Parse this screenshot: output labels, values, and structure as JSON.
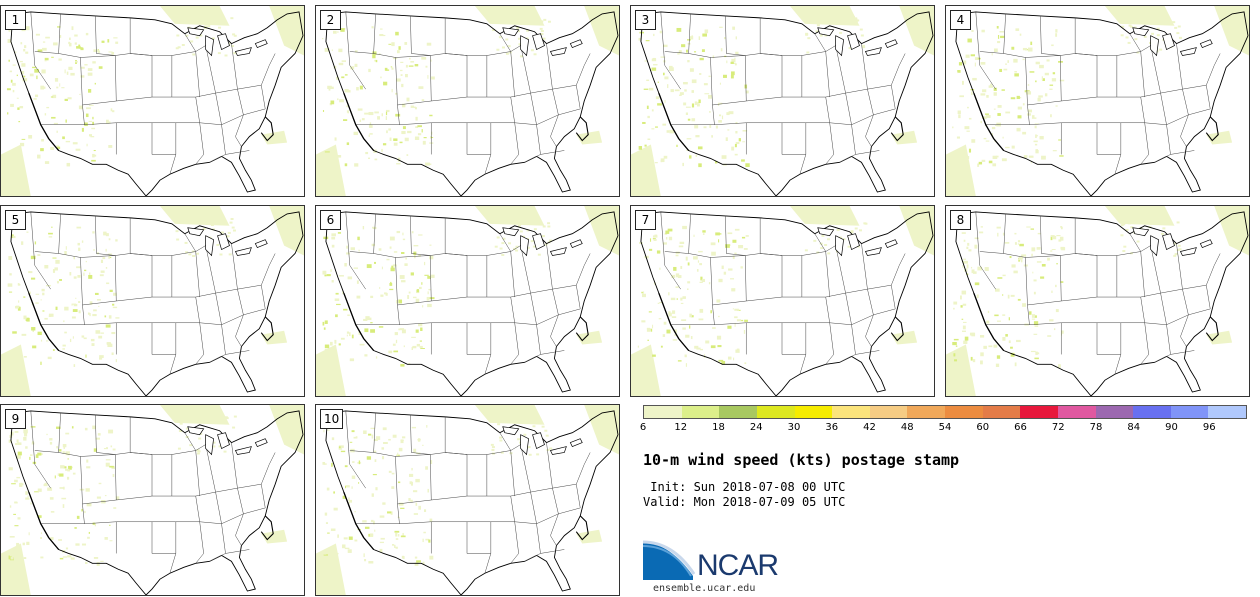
{
  "panels": [
    {
      "label": "1"
    },
    {
      "label": "2"
    },
    {
      "label": "3"
    },
    {
      "label": "4"
    },
    {
      "label": "5"
    },
    {
      "label": "6"
    },
    {
      "label": "7"
    },
    {
      "label": "8"
    },
    {
      "label": "9"
    },
    {
      "label": "10"
    }
  ],
  "colorbar": {
    "colors": [
      "#eef4c8",
      "#dcef8a",
      "#a8c860",
      "#dde820",
      "#f6ec00",
      "#fbe47c",
      "#f6cc84",
      "#f0a85a",
      "#ec8c40",
      "#e47c48",
      "#e8183c",
      "#e058a0",
      "#9c68b0",
      "#6870f0",
      "#8094f8",
      "#b0c8fc"
    ],
    "ticks": [
      "6",
      "12",
      "18",
      "24",
      "30",
      "36",
      "42",
      "48",
      "54",
      "60",
      "66",
      "72",
      "78",
      "84",
      "90",
      "96"
    ]
  },
  "title": "10-m wind speed (kts) postage stamp",
  "init_line": " Init: Sun 2018-07-08 00 UTC",
  "valid_line": "Valid: Mon 2018-07-09 05 UTC",
  "logo": {
    "text": "NCAR",
    "site": "ensemble.ucar.edu"
  }
}
